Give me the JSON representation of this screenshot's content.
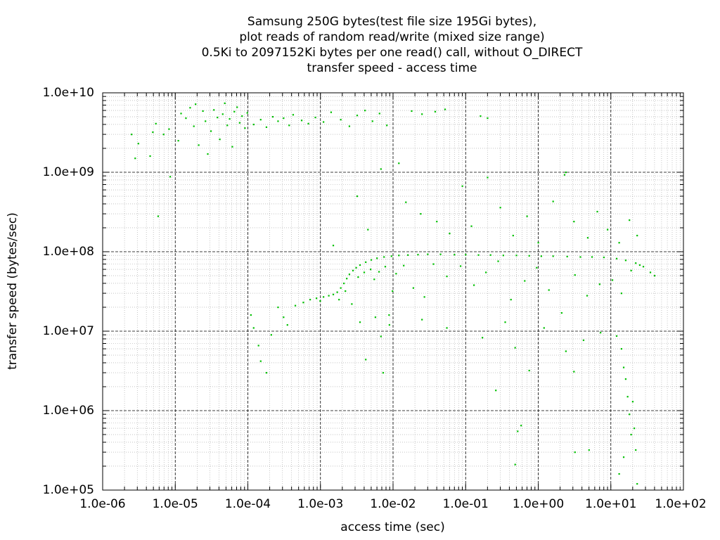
{
  "chart_data": {
    "type": "scatter",
    "title_lines": [
      "Samsung 250G bytes(test file size 195Gi bytes),",
      "plot reads of random read/write (mixed size range)",
      "0.5Ki to 2097152Ki bytes per one read() call, without O_DIRECT",
      "transfer speed - access time"
    ],
    "xlabel": "access time (sec)",
    "ylabel": "transfer speed (bytes/sec)",
    "xscale": "log",
    "yscale": "log",
    "xlim": [
      1e-06,
      100
    ],
    "ylim": [
      100000,
      10000000000
    ],
    "xticks": [
      "1.0e-06",
      "1.0e-05",
      "1.0e-04",
      "1.0e-03",
      "1.0e-02",
      "1.0e-01",
      "1.0e+00",
      "1.0e+01",
      "1.0e+02"
    ],
    "yticks": [
      "1.0e+05",
      "1.0e+06",
      "1.0e+07",
      "1.0e+08",
      "1.0e+09",
      "1.0e+10"
    ],
    "grid": true,
    "point_color": "#00c000",
    "series": [
      {
        "points": [
          [
            2.5e-06,
            3000000000.0
          ],
          [
            2.8e-06,
            1500000000.0
          ],
          [
            3.1e-06,
            2300000000.0
          ],
          [
            4.5e-06,
            1600000000.0
          ],
          [
            4.9e-06,
            3200000000.0
          ],
          [
            5.4e-06,
            4100000000.0
          ],
          [
            5.8e-06,
            280000000.0
          ],
          [
            6.9e-06,
            3000000000.0
          ],
          [
            8.2e-06,
            3500000000.0
          ],
          [
            8.5e-06,
            880000000.0
          ],
          [
            1.1e-05,
            2500000000.0
          ],
          [
            1.2e-05,
            5500000000.0
          ],
          [
            1.4e-05,
            4800000000.0
          ],
          [
            1.6e-05,
            6500000000.0
          ],
          [
            1.8e-05,
            3800000000.0
          ],
          [
            1.9e-05,
            7200000000.0
          ],
          [
            2.1e-05,
            2200000000.0
          ],
          [
            2.4e-05,
            5900000000.0
          ],
          [
            2.6e-05,
            4400000000.0
          ],
          [
            2.8e-05,
            1700000000.0
          ],
          [
            3.1e-05,
            3300000000.0
          ],
          [
            3.4e-05,
            6100000000.0
          ],
          [
            3.8e-05,
            4900000000.0
          ],
          [
            4.1e-05,
            2600000000.0
          ],
          [
            4.5e-05,
            5400000000.0
          ],
          [
            4.8e-05,
            7400000000.0
          ],
          [
            5.2e-05,
            3900000000.0
          ],
          [
            5.6e-05,
            4700000000.0
          ],
          [
            6.1e-05,
            2100000000.0
          ],
          [
            6.5e-05,
            5800000000.0
          ],
          [
            7.1e-05,
            6600000000.0
          ],
          [
            7.7e-05,
            4200000000.0
          ],
          [
            8.3e-05,
            5100000000.0
          ],
          [
            9.1e-05,
            3600000000.0
          ],
          [
            9.8e-05,
            5600000000.0
          ],
          [
            0.00012,
            4000000000.0
          ],
          [
            0.00015,
            4600000000.0
          ],
          [
            0.00018,
            3700000000.0
          ],
          [
            0.00022,
            5000000000.0
          ],
          [
            0.00026,
            4400000000.0
          ],
          [
            0.00031,
            4800000000.0
          ],
          [
            0.00037,
            3900000000.0
          ],
          [
            0.00042,
            5300000000.0
          ],
          [
            0.00055,
            4500000000.0
          ],
          [
            0.00068,
            4100000000.0
          ],
          [
            0.00085,
            4900000000.0
          ],
          [
            0.0011,
            4300000000.0
          ],
          [
            0.0014,
            5700000000.0
          ],
          [
            0.0019,
            4600000000.0
          ],
          [
            0.0025,
            3800000000.0
          ],
          [
            0.0032,
            5200000000.0
          ],
          [
            0.0041,
            6000000000.0
          ],
          [
            0.0052,
            4400000000.0
          ],
          [
            0.0065,
            5500000000.0
          ],
          [
            0.0082,
            3900000000.0
          ],
          [
            0.018,
            5900000000.0
          ],
          [
            0.025,
            5400000000.0
          ],
          [
            0.038,
            5800000000.0
          ],
          [
            0.052,
            6200000000.0
          ],
          [
            0.16,
            5100000000.0
          ],
          [
            0.2,
            4800000000.0
          ],
          [
            0.00011,
            16000000.0
          ],
          [
            0.00012,
            11000000.0
          ],
          [
            0.00014,
            6600000.0
          ],
          [
            0.00015,
            4200000.0
          ],
          [
            0.00018,
            3000000.0
          ],
          [
            0.00021,
            9000000.0
          ],
          [
            0.00026,
            20000000.0
          ],
          [
            0.00031,
            15000000.0
          ],
          [
            0.00035,
            12000000.0
          ],
          [
            0.00045,
            21000000.0
          ],
          [
            0.00058,
            23000000.0
          ],
          [
            0.00072,
            25000000.0
          ],
          [
            0.00088,
            26000000.0
          ],
          [
            0.00099,
            24000000.0
          ],
          [
            0.0011,
            27000000.0
          ],
          [
            0.0013,
            28000000.0
          ],
          [
            0.0015,
            29000000.0
          ],
          [
            0.0017,
            31000000.0
          ],
          [
            0.0019,
            35000000.0
          ],
          [
            0.0021,
            40000000.0
          ],
          [
            0.0023,
            46000000.0
          ],
          [
            0.0025,
            52000000.0
          ],
          [
            0.0028,
            58000000.0
          ],
          [
            0.0031,
            63000000.0
          ],
          [
            0.0035,
            68000000.0
          ],
          [
            0.0042,
            74000000.0
          ],
          [
            0.005,
            79000000.0
          ],
          [
            0.006,
            83000000.0
          ],
          [
            0.0075,
            86000000.0
          ],
          [
            0.0095,
            88000000.0
          ],
          [
            0.012,
            90000000.0
          ],
          [
            0.016,
            91000000.0
          ],
          [
            0.022,
            92000000.0
          ],
          [
            0.03,
            93000000.0
          ],
          [
            0.045,
            93000000.0
          ],
          [
            0.07,
            92000000.0
          ],
          [
            0.1,
            92000000.0
          ],
          [
            0.15,
            91000000.0
          ],
          [
            0.22,
            91000000.0
          ],
          [
            0.33,
            90000000.0
          ],
          [
            0.5,
            90000000.0
          ],
          [
            0.75,
            89000000.0
          ],
          [
            1.1,
            88000000.0
          ],
          [
            1.6,
            88000000.0
          ],
          [
            2.5,
            87000000.0
          ],
          [
            3.8,
            86000000.0
          ],
          [
            5.5,
            86000000.0
          ],
          [
            8.0,
            85000000.0
          ],
          [
            12.0,
            82000000.0
          ],
          [
            16.0,
            78000000.0
          ],
          [
            22.0,
            72000000.0
          ],
          [
            28.0,
            65000000.0
          ],
          [
            35.0,
            55000000.0
          ],
          [
            40.0,
            50000000.0
          ],
          [
            0.0018,
            25000000.0
          ],
          [
            0.0022,
            32000000.0
          ],
          [
            0.0027,
            22000000.0
          ],
          [
            0.0033,
            48000000.0
          ],
          [
            0.004,
            55000000.0
          ],
          [
            0.0049,
            60000000.0
          ],
          [
            0.0055,
            45000000.0
          ],
          [
            0.0064,
            56000000.0
          ],
          [
            0.0078,
            65000000.0
          ],
          [
            0.0088,
            16000000.0
          ],
          [
            0.0098,
            32000000.0
          ],
          [
            0.011,
            53000000.0
          ],
          [
            0.014,
            67000000.0
          ],
          [
            0.019,
            35000000.0
          ],
          [
            0.027,
            27000000.0
          ],
          [
            0.036,
            70000000.0
          ],
          [
            0.055,
            49000000.0
          ],
          [
            0.085,
            66000000.0
          ],
          [
            0.13,
            38000000.0
          ],
          [
            0.19,
            55000000.0
          ],
          [
            0.28,
            76000000.0
          ],
          [
            0.42,
            25000000.0
          ],
          [
            0.65,
            43000000.0
          ],
          [
            0.95,
            63000000.0
          ],
          [
            1.4,
            33000000.0
          ],
          [
            2.1,
            17000000.0
          ],
          [
            3.2,
            51000000.0
          ],
          [
            4.7,
            28000000.0
          ],
          [
            7.0,
            39000000.0
          ],
          [
            10.5,
            44000000.0
          ],
          [
            14.0,
            30000000.0
          ],
          [
            19.0,
            58000000.0
          ],
          [
            25.0,
            68000000.0
          ],
          [
            0.0015,
            120000000.0
          ],
          [
            0.0032,
            500000000.0
          ],
          [
            0.0045,
            190000000.0
          ],
          [
            0.0068,
            1100000000.0
          ],
          [
            0.012,
            1300000000.0
          ],
          [
            0.015,
            420000000.0
          ],
          [
            0.024,
            300000000.0
          ],
          [
            0.04,
            240000000.0
          ],
          [
            0.06,
            170000000.0
          ],
          [
            0.09,
            670000000.0
          ],
          [
            0.12,
            210000000.0
          ],
          [
            0.2,
            860000000.0
          ],
          [
            0.3,
            360000000.0
          ],
          [
            0.45,
            160000000.0
          ],
          [
            0.7,
            280000000.0
          ],
          [
            1.0,
            130000000.0
          ],
          [
            1.6,
            430000000.0
          ],
          [
            2.3,
            930000000.0
          ],
          [
            3.1,
            240000000.0
          ],
          [
            4.8,
            150000000.0
          ],
          [
            6.5,
            320000000.0
          ],
          [
            9.0,
            190000000.0
          ],
          [
            13.0,
            130000000.0
          ],
          [
            18.0,
            250000000.0
          ],
          [
            23.0,
            160000000.0
          ],
          [
            0.0035,
            13000000.0
          ],
          [
            0.0042,
            4400000.0
          ],
          [
            0.0057,
            15000000.0
          ],
          [
            0.0068,
            8600000.0
          ],
          [
            0.0073,
            3000000.0
          ],
          [
            0.0089,
            12000000.0
          ],
          [
            0.025,
            14000000.0
          ],
          [
            0.055,
            11000000.0
          ],
          [
            0.17,
            8300000.0
          ],
          [
            0.26,
            1800000.0
          ],
          [
            0.35,
            13000000.0
          ],
          [
            0.48,
            6200000.0
          ],
          [
            0.58,
            650000.0
          ],
          [
            0.75,
            3200000.0
          ],
          [
            1.2,
            11000000.0
          ],
          [
            2.4,
            5600000.0
          ],
          [
            3.1,
            3100000.0
          ],
          [
            4.2,
            7700000.0
          ],
          [
            5.0,
            320000.0
          ],
          [
            7.2,
            9600000.0
          ],
          [
            12.0,
            8700000.0
          ],
          [
            14.0,
            6000000.0
          ],
          [
            15.0,
            3500000.0
          ],
          [
            16.0,
            2500000.0
          ],
          [
            17.0,
            1500000.0
          ],
          [
            18.0,
            900000.0
          ],
          [
            19.0,
            500000.0
          ],
          [
            20.0,
            1300000.0
          ],
          [
            21.0,
            600000.0
          ],
          [
            22.0,
            320000.0
          ],
          [
            23.0,
            120000.0
          ],
          [
            13.0,
            160000.0
          ],
          [
            15.0,
            260000.0
          ],
          [
            0.48,
            210000.0
          ],
          [
            3.2,
            300000.0
          ],
          [
            2.4,
            1000000000.0
          ],
          [
            0.52,
            550000.0
          ]
        ]
      }
    ]
  }
}
